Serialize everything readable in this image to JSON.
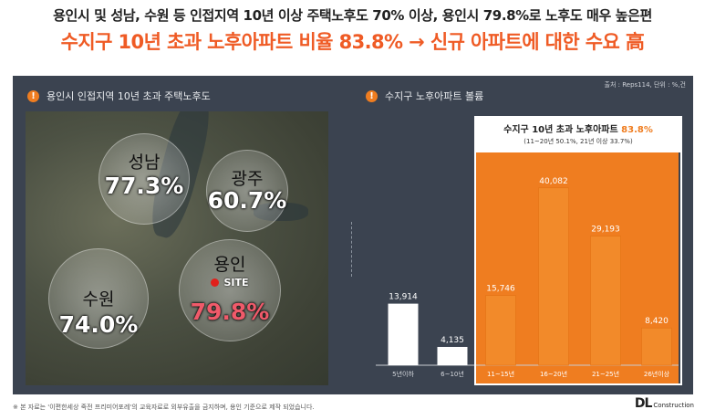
{
  "headline": {
    "line1": "용인시 및 성남, 수원 등 인접지역 10년 이상 주택노후도 70% 이상, 용인시 79.8%로 노후도 매우 높은편",
    "line2": "수지구 10년 초과 노후아파트 비율 83.8% → 신규 아파트에 대한 수요 高"
  },
  "source": "출처 : Reps114, 단위 : %,건",
  "left_section": {
    "title": "용인시 인접지역 10년 초과 주택노후도",
    "areas": [
      {
        "name": "성남",
        "value": "77.3%"
      },
      {
        "name": "광주",
        "value": "60.7%"
      },
      {
        "name": "수원",
        "value": "74.0%"
      },
      {
        "name": "용인",
        "value": "79.8%",
        "marker": "SITE"
      }
    ]
  },
  "right_section": {
    "title": "수지구 노후아파트 볼륨",
    "callout": {
      "title": "수지구 10년 초과 노후아파트",
      "pct": "83.8%",
      "sub": "(11~20년 50.1%, 21년 이상 33.7%)"
    }
  },
  "chart_data": {
    "type": "bar",
    "categories": [
      "5년이하",
      "6~10년",
      "11~15년",
      "16~20년",
      "21~25년",
      "26년이상"
    ],
    "values": [
      13914,
      4135,
      15746,
      40082,
      29193,
      8420
    ],
    "value_labels": [
      "13,914",
      "4,135",
      "15,746",
      "40,082",
      "29,193",
      "8,420"
    ],
    "bar_colors": [
      "#ffffff",
      "#ffffff",
      "#ef7d20",
      "#ef7d20",
      "#ef7d20",
      "#ef7d20"
    ],
    "highlight_background": "#ef7d20",
    "ylim": [
      0,
      45000
    ],
    "title": "",
    "xlabel": "",
    "ylabel": ""
  },
  "footnote": "※ 본 자료는 '이편한세상 죽전 프리미어포레'의 교육자료로 외부유출을 금지하며, 용인 기준으로 제작 되었습니다.",
  "brand": {
    "mark": "DL",
    "name": "Construction"
  },
  "colors": {
    "accent": "#ef5b25",
    "bar_orange": "#ef7d20",
    "panel": "#3b4350"
  }
}
